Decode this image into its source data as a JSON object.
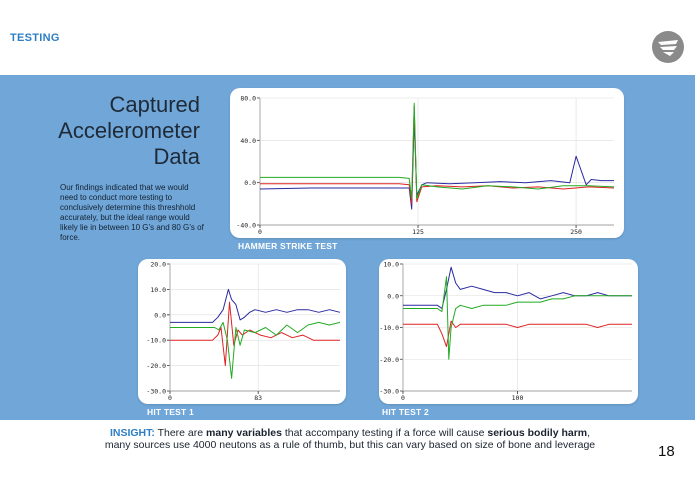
{
  "header": {
    "section_label": "TESTING",
    "logo_icon": "swoosh-logo-icon"
  },
  "title_lines": [
    "Captured",
    "Accelerometer",
    "Data"
  ],
  "body_text": "Our findings indicated that we would need to conduct more testing to conclusively determine this threshhold accurately, but the ideal range would likely lie in between 10 G’s and 80 G’s of force.",
  "colors": {
    "band": "#70a7d8",
    "accent": "#2d7ec4",
    "series_blue": "#2a2aa0",
    "series_red": "#dd2222",
    "series_green": "#22aa22"
  },
  "chart_data": [
    {
      "type": "line",
      "title": "HAMMER STRIKE TEST",
      "ylim": [
        -40,
        80
      ],
      "xlim": [
        0,
        280
      ],
      "yticks": [
        "80.0",
        "40.0",
        "0.0",
        "-40.0"
      ],
      "xticks": [
        "0",
        "125",
        "250"
      ],
      "series": [
        {
          "name": "blue",
          "color": "#2a2aa0",
          "x": [
            0,
            40,
            80,
            110,
            118,
            120,
            122,
            124,
            128,
            132,
            150,
            170,
            190,
            210,
            230,
            245,
            250,
            258,
            262,
            270,
            280
          ],
          "values": [
            -6,
            -5,
            -5,
            -5,
            -5,
            -25,
            60,
            -12,
            -2,
            0,
            -1,
            0,
            1,
            0,
            2,
            0,
            25,
            -2,
            3,
            2,
            2
          ]
        },
        {
          "name": "red",
          "color": "#dd2222",
          "x": [
            0,
            40,
            80,
            110,
            118,
            120,
            122,
            124,
            128,
            140,
            160,
            180,
            200,
            220,
            240,
            260,
            280
          ],
          "values": [
            -1,
            -1,
            -1,
            -1,
            -2,
            -20,
            72,
            -18,
            -4,
            -3,
            -4,
            -3,
            -5,
            -4,
            -6,
            -4,
            -5
          ]
        },
        {
          "name": "green",
          "color": "#22aa22",
          "x": [
            0,
            40,
            80,
            110,
            118,
            120,
            122,
            124,
            128,
            140,
            160,
            180,
            200,
            220,
            240,
            260,
            280
          ],
          "values": [
            5,
            5,
            5,
            5,
            4,
            -15,
            75,
            -15,
            -2,
            -4,
            -6,
            -3,
            -4,
            -6,
            -3,
            -3,
            -4
          ]
        }
      ]
    },
    {
      "type": "line",
      "title": "HIT TEST 1",
      "ylim": [
        -30,
        20
      ],
      "xlim": [
        0,
        160
      ],
      "yticks": [
        "20.0",
        "10.0",
        "0.0",
        "-10.0",
        "-20.0",
        "-30.0"
      ],
      "xticks": [
        "0",
        "83"
      ],
      "series": [
        {
          "name": "blue",
          "color": "#2a2aa0",
          "x": [
            0,
            20,
            35,
            40,
            45,
            50,
            55,
            58,
            62,
            66,
            70,
            75,
            80,
            90,
            100,
            110,
            120,
            130,
            140,
            150,
            160
          ],
          "values": [
            -3,
            -3,
            -3,
            -3,
            -1,
            2,
            10,
            6,
            4,
            -2,
            -1,
            1,
            2,
            1,
            2,
            1,
            2,
            2,
            1,
            2,
            1
          ]
        },
        {
          "name": "red",
          "color": "#dd2222",
          "x": [
            0,
            20,
            35,
            40,
            45,
            48,
            52,
            56,
            60,
            64,
            68,
            75,
            85,
            95,
            105,
            115,
            125,
            135,
            145,
            160
          ],
          "values": [
            -10,
            -10,
            -10,
            -10,
            -8,
            -5,
            -20,
            5,
            -12,
            -6,
            -8,
            -6,
            -8,
            -9,
            -7,
            -9,
            -8,
            -10,
            -10,
            -10
          ]
        },
        {
          "name": "green",
          "color": "#22aa22",
          "x": [
            0,
            20,
            35,
            42,
            46,
            50,
            54,
            58,
            62,
            66,
            70,
            80,
            90,
            100,
            110,
            120,
            130,
            140,
            150,
            160
          ],
          "values": [
            -5,
            -5,
            -5,
            -5,
            -6,
            -3,
            -10,
            -25,
            -5,
            -12,
            -6,
            -7,
            -5,
            -8,
            -4,
            -7,
            -4,
            -3,
            -4,
            -3
          ]
        }
      ]
    },
    {
      "type": "line",
      "title": "HIT TEST 2",
      "ylim": [
        -30,
        10
      ],
      "xlim": [
        0,
        200
      ],
      "yticks": [
        "10.0",
        "0.0",
        "-10.0",
        "-20.0",
        "-30.0"
      ],
      "xticks": [
        "0",
        "100"
      ],
      "series": [
        {
          "name": "blue",
          "color": "#2a2aa0",
          "x": [
            0,
            15,
            25,
            30,
            34,
            38,
            42,
            46,
            50,
            60,
            70,
            80,
            90,
            100,
            110,
            120,
            130,
            140,
            150,
            160,
            170,
            180,
            190,
            200
          ],
          "values": [
            -3,
            -3,
            -3,
            -3,
            -4,
            2,
            9,
            4,
            2,
            3,
            2,
            1,
            1,
            0,
            1,
            -1,
            0,
            1,
            0,
            0,
            1,
            0,
            0,
            0
          ]
        },
        {
          "name": "red",
          "color": "#dd2222",
          "x": [
            0,
            15,
            25,
            30,
            34,
            38,
            42,
            46,
            50,
            60,
            70,
            80,
            90,
            100,
            110,
            120,
            130,
            140,
            150,
            160,
            170,
            180,
            190,
            200
          ],
          "values": [
            -9,
            -9,
            -9,
            -9,
            -12,
            -16,
            -8,
            -10,
            -9,
            -9,
            -9,
            -9,
            -9,
            -10,
            -9,
            -9,
            -9,
            -9,
            -9,
            -9,
            -10,
            -9,
            -9,
            -9
          ]
        },
        {
          "name": "green",
          "color": "#22aa22",
          "x": [
            0,
            15,
            25,
            30,
            34,
            38,
            40,
            42,
            46,
            50,
            60,
            70,
            80,
            90,
            100,
            110,
            120,
            130,
            140,
            150,
            160,
            170,
            180,
            190,
            200
          ],
          "values": [
            -4,
            -4,
            -4,
            -4,
            -5,
            6,
            -20,
            -10,
            -4,
            -3,
            -4,
            -3,
            -3,
            -3,
            -2,
            -2,
            -2,
            -1,
            -1,
            0,
            0,
            0,
            0,
            0,
            0
          ]
        }
      ]
    }
  ],
  "insight": {
    "lead": "INSIGHT:",
    "t1": " There are ",
    "b1": "many variables",
    "t2": " that accompany testing if a force will cause ",
    "b2": "serious bodily harm",
    "t3": ",",
    "line2": "many sources use 4000 neutons as a rule of thumb, but this can vary based on size of bone and leverage"
  },
  "page_number": "18"
}
